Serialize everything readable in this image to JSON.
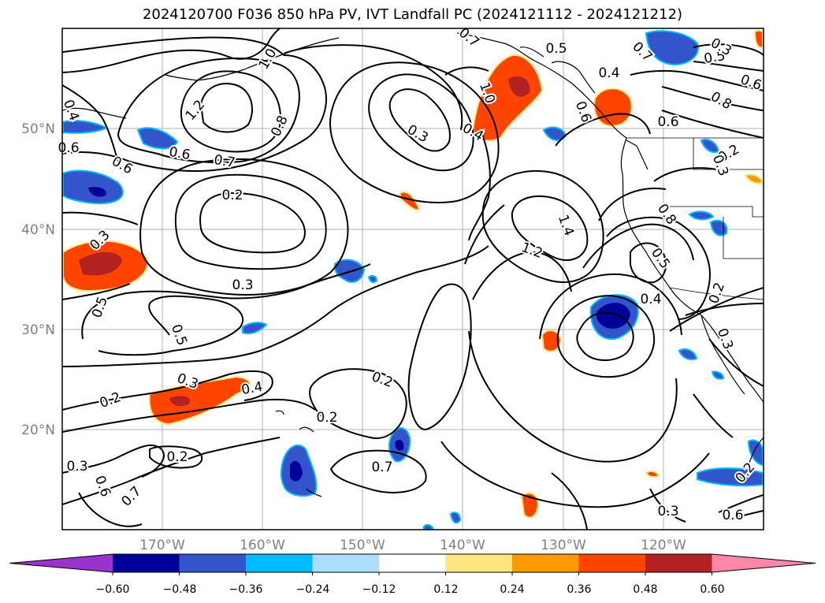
{
  "title": "2024120700 F036 850 hPa PV, IVT Landfall PC (2024121112 - 2024121212)",
  "lat_labels": [
    "50°N",
    "40°N",
    "30°N",
    "20°N"
  ],
  "lon_labels": [
    "170°W",
    "160°W",
    "150°W",
    "140°W",
    "130°W",
    "120°W"
  ],
  "colorbar": {
    "ticks": [
      "−0.60",
      "−0.48",
      "−0.36",
      "−0.24",
      "−0.12",
      "0.12",
      "0.24",
      "0.36",
      "0.48",
      "0.60"
    ],
    "colors": [
      "#9933cc",
      "#000099",
      "#3355cc",
      "#00bbff",
      "#aaddff",
      "#ffffff",
      "#ffe680",
      "#ff9900",
      "#ff4400",
      "#b22222",
      "#ff88aa"
    ]
  },
  "contour_labels": [
    "1.0",
    "1.2",
    "0.8",
    "0.6",
    "0.7",
    "0.2",
    "0.3",
    "0.5",
    "0.3",
    "0.5",
    "0.6",
    "0.4",
    "0.3",
    "0.2",
    "0.4",
    "0.2",
    "0.2",
    "0.3",
    "0.2",
    "0.3",
    "0.6",
    "0.7",
    "0.4",
    "0.5",
    "0.8",
    "1.2",
    "1.4",
    "1.0",
    "0.7",
    "0.5",
    "0.3",
    "0.6",
    "0.8",
    "0.6",
    "0.2",
    "0.3",
    "0.2",
    "0.3",
    "0.2",
    "0.3",
    "0.6",
    "0.7",
    "0.4",
    "0.6",
    "0.7",
    "0.5",
    "0.4",
    "0.6"
  ]
}
